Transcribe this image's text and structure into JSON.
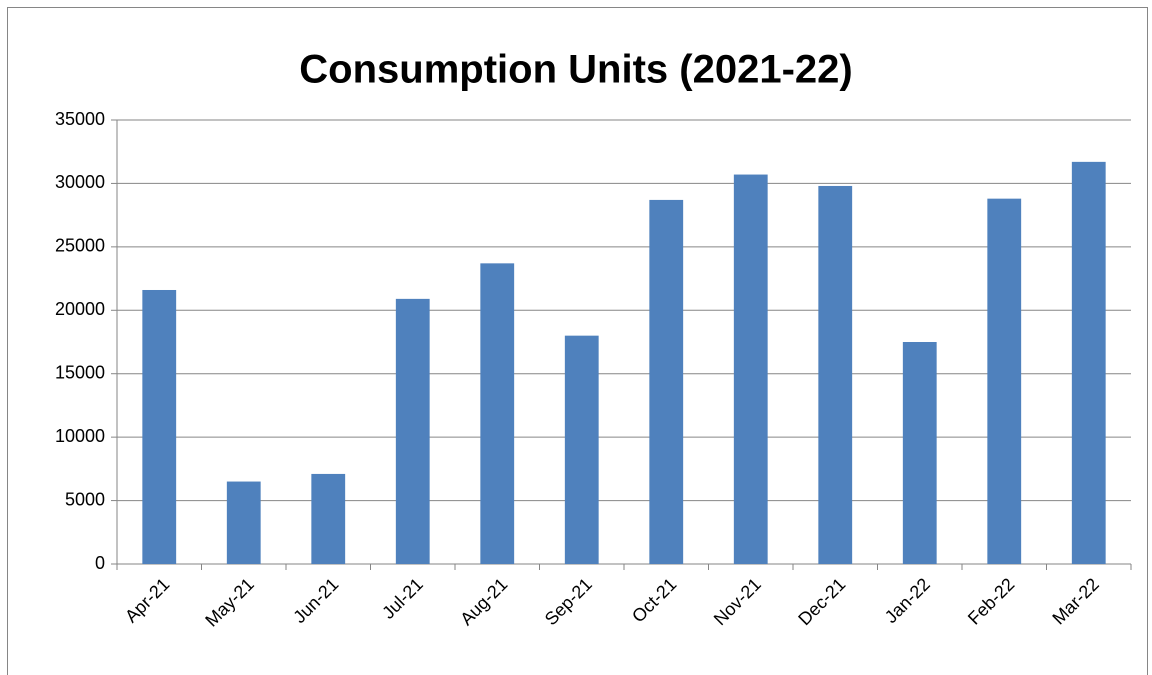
{
  "chart_data": {
    "type": "bar",
    "title": "Consumption Units (2021-22)",
    "categories": [
      "Apr-21",
      "May-21",
      "Jun-21",
      "Jul-21",
      "Aug-21",
      "Sep-21",
      "Oct-21",
      "Nov-21",
      "Dec-21",
      "Jan-22",
      "Feb-22",
      "Mar-22"
    ],
    "values": [
      21600,
      6500,
      7100,
      20900,
      23700,
      18000,
      28700,
      30700,
      29800,
      17500,
      28800,
      31700
    ],
    "color": "#4f81bd",
    "ylim": [
      0,
      35000
    ],
    "yticks": [
      0,
      5000,
      10000,
      15000,
      20000,
      25000,
      30000,
      35000
    ],
    "grid": true
  }
}
